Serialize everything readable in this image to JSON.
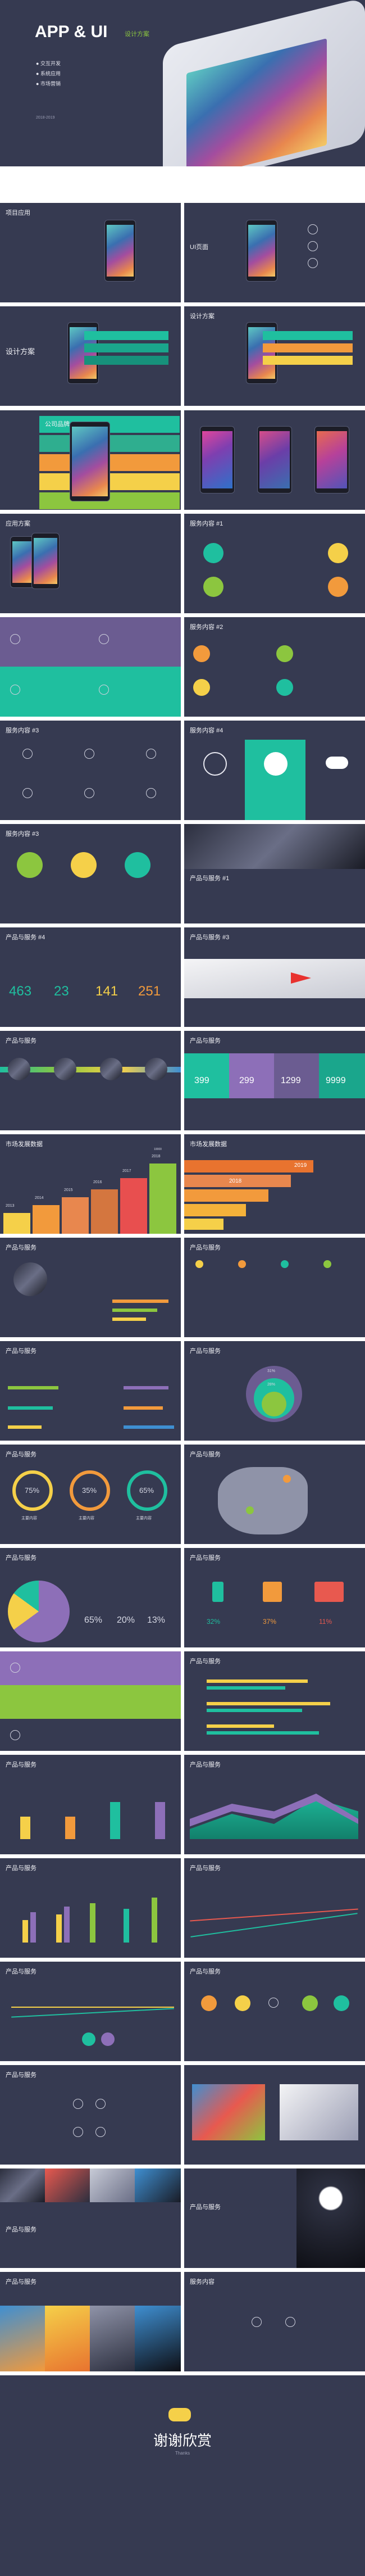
{
  "cover": {
    "title": "APP & UI",
    "tag": "设计方案",
    "items": [
      "交互开发",
      "系统应用",
      "市场营销"
    ],
    "year": "2018-2019"
  },
  "slides": {
    "s2a": "项目应用",
    "s2b": "UI页面",
    "s3a": "设计方案",
    "s3b": "设计方案",
    "s4a": "公司品牌",
    "s5a": "应用方案",
    "s5b": "服务内容 #1",
    "s6a": "服务内容 #2",
    "s7a": "服务内容 #3",
    "s7b": "服务内容 #4",
    "s8a": "服务内容 #3",
    "s8b": "产品与服务 #1",
    "s9a": "产品与服务 #4",
    "s9b": "产品与服务 #3",
    "s10a": "产品与服务",
    "s10b": "产品与服务",
    "s11a": "市场发展数据",
    "s11b": "市场发展数据",
    "s12a": "产品与服务",
    "s12b": "产品与服务",
    "s13a": "产品与服务",
    "s13b": "产品与服务",
    "s14a": "产品与服务",
    "s14b": "产品与服务",
    "s15a": "产品与服务",
    "s15b": "产品与服务",
    "s16a": "产品与服务",
    "s16b": "产品与服务",
    "s17a": "产品与服务",
    "s17b": "产品与服务",
    "s18a": "产品与服务",
    "s18b": "产品与服务",
    "s19a": "产品与服务",
    "s19b": "产品与服务",
    "s20a": "产品与服务",
    "s20b": "产品与服务",
    "s21a": "产品与服务",
    "s21b": "产品与服务",
    "s22a": "产品与服务",
    "s22b": "产品与服务",
    "s23b": "服务内容"
  },
  "labels": {
    "price_a": "399",
    "price_b": "299",
    "price_c": "1299",
    "price_d": "9999",
    "n1": "463",
    "n2": "23",
    "n3": "141",
    "n4": "251",
    "pct1": "75%",
    "pct2": "35%",
    "pct3": "65%",
    "pct4": "65%",
    "pct5": "20%",
    "pct6": "13%",
    "pct7": "32%",
    "pct8": "37%",
    "pct9": "11%",
    "main1": "主要内容",
    "main2": "主要内容",
    "main3": "主要内容",
    "y2013": "2013",
    "y2014": "2014",
    "y2015": "2015",
    "y2016": "2016",
    "y2017": "2017",
    "y2018": "2018",
    "y2019": "2019",
    "v2016": "10000",
    "bubble1": "31%",
    "bubble2": "28%"
  },
  "thanks": {
    "title": "谢谢欣赏",
    "sub": "Thanks"
  },
  "colors": {
    "slide_bg": "#363a51",
    "teal": "#1fbf9f",
    "green": "#8cc63f",
    "orange": "#f29a3c",
    "yellow": "#f5d049",
    "purple": "#8d6fb8",
    "blue": "#3f8fd1"
  }
}
